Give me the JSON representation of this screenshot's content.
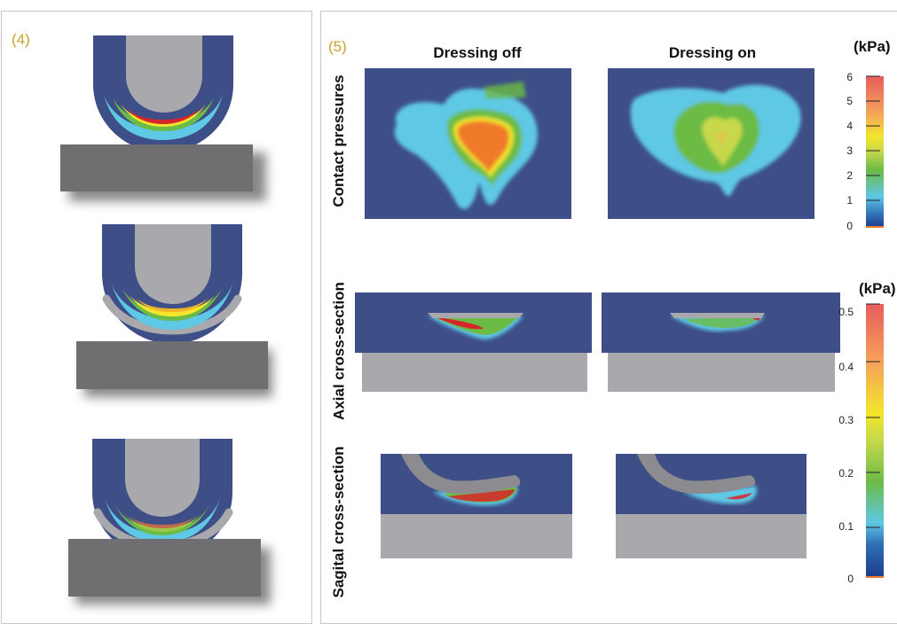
{
  "panel_left": {
    "label": "(4)"
  },
  "panel_right": {
    "label": "(5)",
    "columns": [
      "Dressing off",
      "Dressing on"
    ],
    "rows": [
      "Contact pressures",
      "Axial cross-section",
      "Sagital cross-section"
    ]
  },
  "scale_top": {
    "unit": "(kPa)",
    "ticks": [
      "6",
      "5",
      "4",
      "3",
      "2",
      "1",
      "0"
    ]
  },
  "scale_bottom": {
    "unit": "(kPa)",
    "ticks": [
      "0.5",
      "0.4",
      "0.3",
      "0.2",
      "0.1",
      "0"
    ]
  },
  "colors": {
    "navy": "#3d4f86",
    "gray": "#a9a9ad",
    "red": "#d7262b",
    "orange": "#f07a2a",
    "yellow": "#f3e62b",
    "green": "#6cbb45",
    "cyan": "#5ec8e5"
  }
}
